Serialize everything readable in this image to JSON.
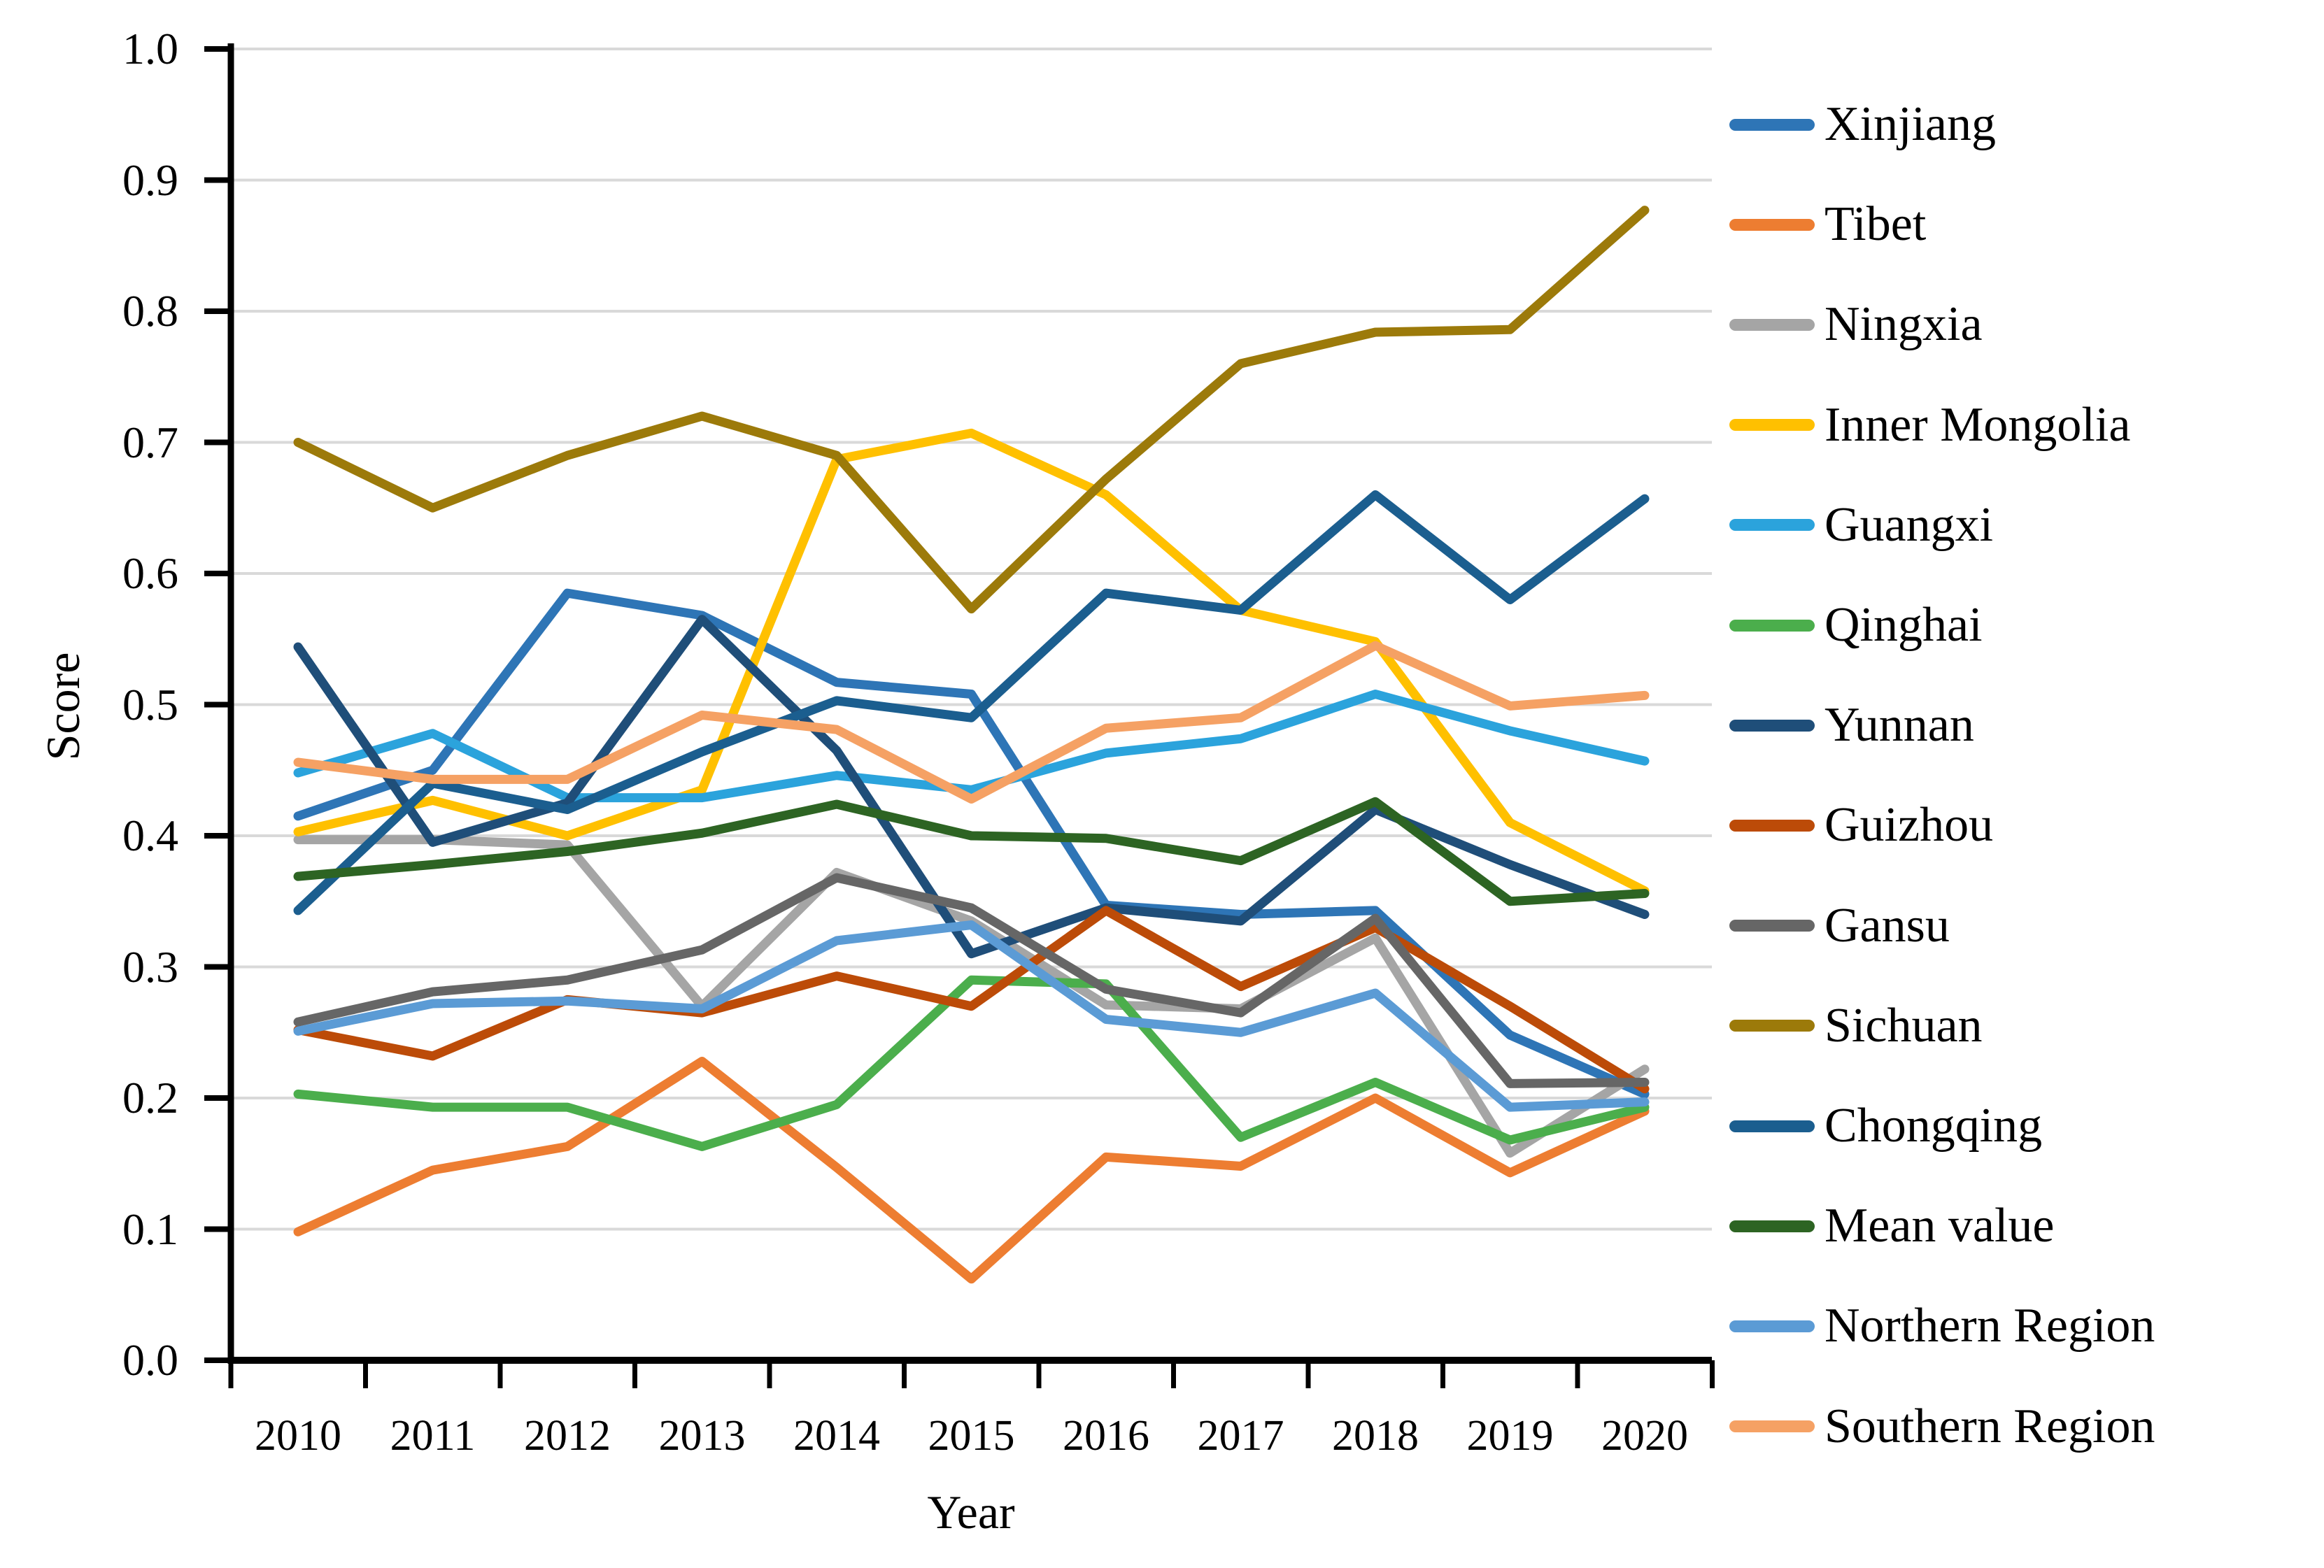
{
  "chart_data": {
    "type": "line",
    "title": "",
    "xlabel": "Year",
    "ylabel": "Score",
    "categories": [
      "2010",
      "2011",
      "2012",
      "2013",
      "2014",
      "2015",
      "2016",
      "2017",
      "2018",
      "2019",
      "2020"
    ],
    "ylim": [
      0.0,
      1.0
    ],
    "yticks": [
      "0.0",
      "0.1",
      "0.2",
      "0.3",
      "0.4",
      "0.5",
      "0.6",
      "0.7",
      "0.8",
      "0.9",
      "1.0"
    ],
    "grid": true,
    "legend_position": "right",
    "grid_color": "#D9D9D9",
    "axis_color": "#000000",
    "series": [
      {
        "name": "Xinjiang",
        "color": "#2E75B6",
        "values": [
          0.415,
          0.45,
          0.585,
          0.568,
          0.517,
          0.508,
          0.347,
          0.34,
          0.343,
          0.248,
          0.203
        ]
      },
      {
        "name": "Tibet",
        "color": "#ED7D31",
        "values": [
          0.098,
          0.145,
          0.163,
          0.228,
          0.147,
          0.062,
          0.155,
          0.148,
          0.2,
          0.143,
          0.19
        ]
      },
      {
        "name": "Ningxia",
        "color": "#A5A5A5",
        "values": [
          0.397,
          0.397,
          0.393,
          0.27,
          0.372,
          0.335,
          0.271,
          0.268,
          0.322,
          0.158,
          0.222
        ]
      },
      {
        "name": "Inner Mongolia",
        "color": "#FFC000",
        "values": [
          0.403,
          0.427,
          0.4,
          0.435,
          0.687,
          0.707,
          0.66,
          0.572,
          0.548,
          0.41,
          0.358
        ]
      },
      {
        "name": "Guangxi",
        "color": "#2BA3DC",
        "values": [
          0.448,
          0.478,
          0.429,
          0.429,
          0.446,
          0.435,
          0.463,
          0.474,
          0.508,
          0.48,
          0.457
        ]
      },
      {
        "name": "Qinghai",
        "color": "#4BAE4C",
        "values": [
          0.203,
          0.193,
          0.193,
          0.163,
          0.195,
          0.29,
          0.287,
          0.17,
          0.212,
          0.168,
          0.193
        ]
      },
      {
        "name": "Yunnan",
        "color": "#1F4E79",
        "values": [
          0.544,
          0.395,
          0.425,
          0.565,
          0.465,
          0.31,
          0.345,
          0.335,
          0.42,
          0.378,
          0.34
        ]
      },
      {
        "name": "Guizhou",
        "color": "#BC4B08",
        "values": [
          0.252,
          0.232,
          0.275,
          0.265,
          0.293,
          0.27,
          0.343,
          0.285,
          0.33,
          0.27,
          0.207
        ]
      },
      {
        "name": "Gansu",
        "color": "#666666",
        "values": [
          0.258,
          0.281,
          0.29,
          0.313,
          0.368,
          0.345,
          0.283,
          0.265,
          0.337,
          0.211,
          0.212
        ]
      },
      {
        "name": "Sichuan",
        "color": "#9C7A0A",
        "values": [
          0.7,
          0.65,
          0.69,
          0.72,
          0.69,
          0.573,
          0.672,
          0.76,
          0.784,
          0.786,
          0.877
        ]
      },
      {
        "name": "Chongqing",
        "color": "#1B5E8F",
        "values": [
          0.343,
          0.44,
          0.42,
          0.464,
          0.503,
          0.49,
          0.585,
          0.572,
          0.66,
          0.58,
          0.657
        ]
      },
      {
        "name": "Mean value",
        "color": "#2D6423",
        "values": [
          0.369,
          0.378,
          0.388,
          0.402,
          0.424,
          0.4,
          0.398,
          0.381,
          0.426,
          0.35,
          0.356
        ]
      },
      {
        "name": "Northern Region",
        "color": "#5B9BD5",
        "values": [
          0.251,
          0.272,
          0.274,
          0.268,
          0.32,
          0.332,
          0.26,
          0.25,
          0.28,
          0.193,
          0.197
        ]
      },
      {
        "name": "Southern Region",
        "color": "#F5A164",
        "values": [
          0.456,
          0.443,
          0.443,
          0.492,
          0.481,
          0.428,
          0.482,
          0.49,
          0.545,
          0.499,
          0.507
        ]
      }
    ]
  }
}
